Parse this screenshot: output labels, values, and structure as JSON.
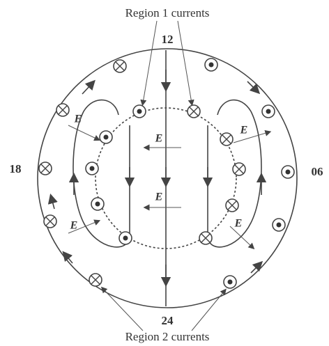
{
  "labels": {
    "region1": "Region 1 currents",
    "region2": "Region 2 currents",
    "top": "12",
    "bottom": "24",
    "left": "18",
    "right": "06"
  },
  "field_labels": [
    "E",
    "E",
    "E",
    "E",
    "E",
    "E"
  ]
}
